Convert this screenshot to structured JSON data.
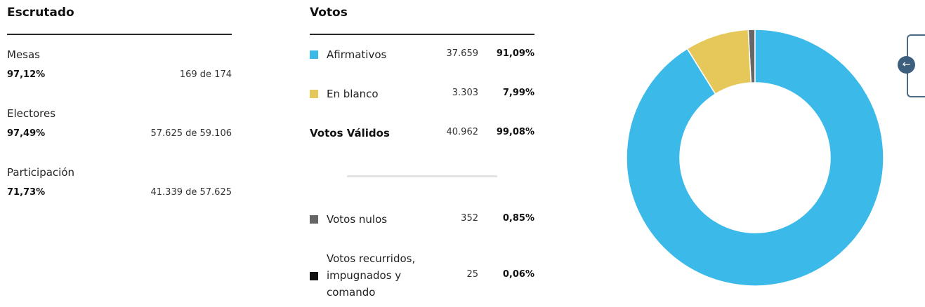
{
  "escrutado": {
    "title": "Escrutado",
    "rows": [
      {
        "label": "Mesas",
        "percent": "97,12%",
        "count": "169 de 174"
      },
      {
        "label": "Electores",
        "percent": "97,49%",
        "count": "57.625 de 59.106"
      },
      {
        "label": "Participación",
        "percent": "71,73%",
        "count": "41.339 de 57.625"
      }
    ]
  },
  "votos": {
    "title": "Votos",
    "rows": [
      {
        "label": "Afirmativos",
        "count": "37.659",
        "percent": "91,09%",
        "color": "#3bb9e9"
      },
      {
        "label": "En blanco",
        "count": "3.303",
        "percent": "7,99%",
        "color": "#e6c85a"
      },
      {
        "label": "Votos Válidos",
        "count": "40.962",
        "percent": "99,08%"
      },
      {
        "label": "Votos nulos",
        "count": "352",
        "percent": "0,85%",
        "color": "#666666"
      },
      {
        "label_lines": [
          "Votos recurridos,",
          "impugnados y",
          "comando"
        ],
        "count": "25",
        "percent": "0,06%",
        "color": "#111111"
      }
    ]
  },
  "side_panel": {
    "icon": "arrow-left-icon",
    "glyph": "←",
    "color": "#3c5f7e"
  },
  "chart_data": {
    "type": "pie",
    "categories": [
      "Afirmativos",
      "En blanco",
      "Votos nulos"
    ],
    "values": [
      91.09,
      7.99,
      0.85
    ],
    "colors": [
      "#3bb9e9",
      "#e6c85a",
      "#666666"
    ]
  }
}
